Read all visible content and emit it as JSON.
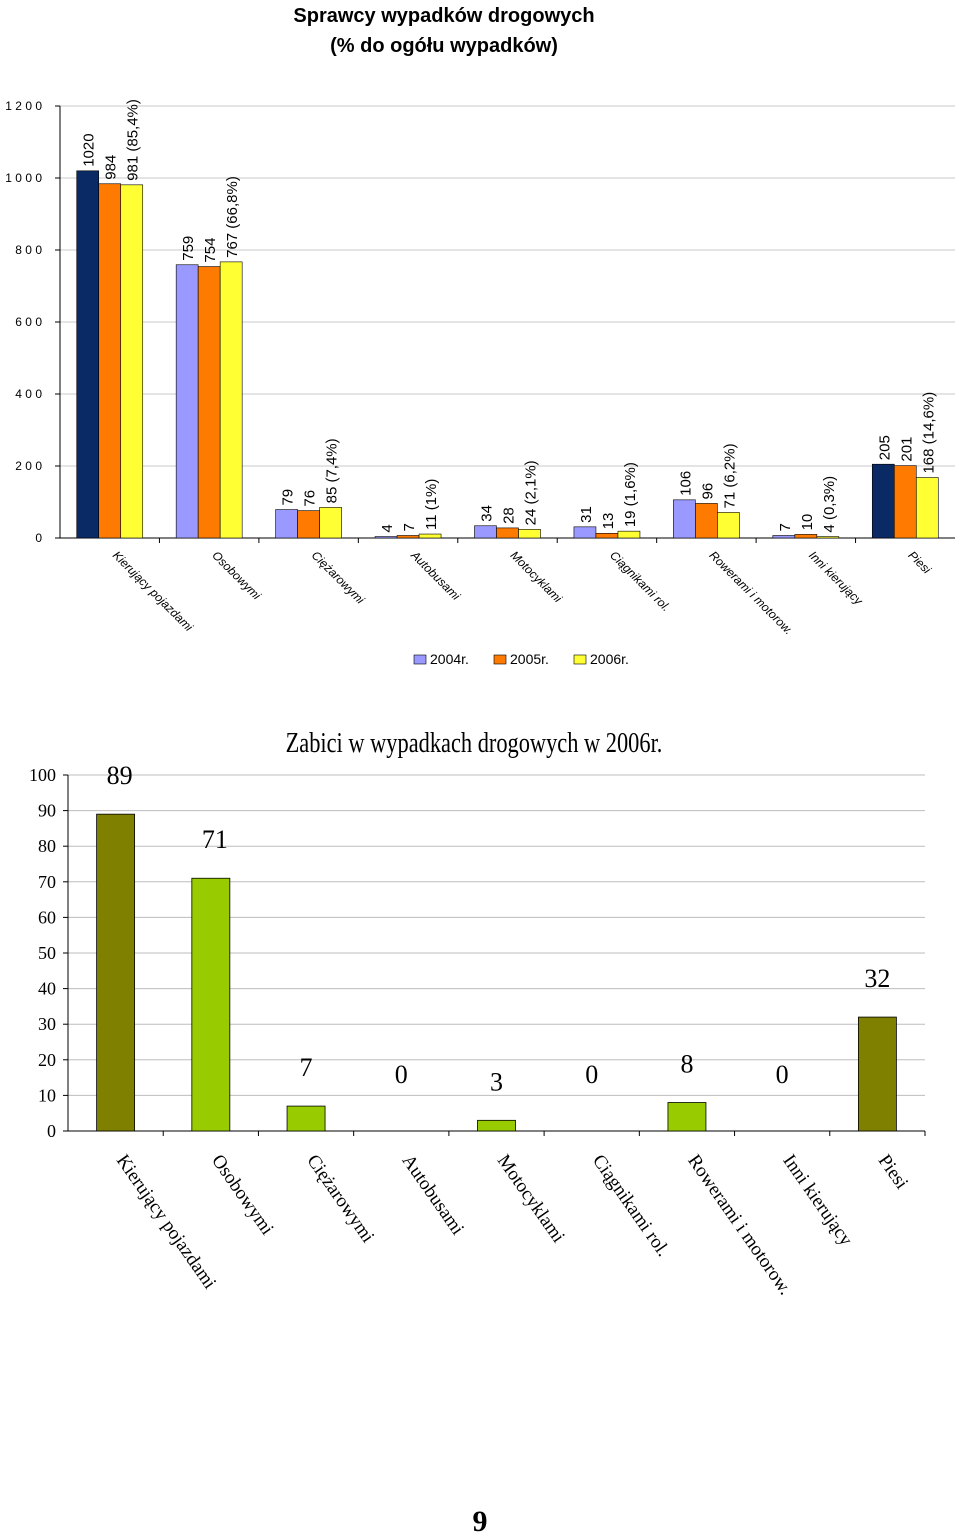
{
  "chart_data": [
    {
      "type": "bar",
      "title": "Sprawcy wypadków drogowych",
      "subtitle": "(% do ogółu wypadków)",
      "categories": [
        "Kierujący pojazdami",
        "Osobowymi",
        "Ciężarowymi",
        "Autobusami",
        "Motocyklami",
        "Ciągnikami rol.",
        "Rowerami i motorow.",
        "Inni kierujący",
        "Piesi"
      ],
      "series": [
        {
          "name": "2004r.",
          "values": [
            1020,
            759,
            79,
            4,
            34,
            31,
            106,
            7,
            205
          ]
        },
        {
          "name": "2005r.",
          "values": [
            984,
            754,
            76,
            7,
            28,
            13,
            96,
            10,
            201
          ]
        },
        {
          "name": "2006r.",
          "values": [
            981,
            767,
            85,
            11,
            24,
            19,
            71,
            4,
            168
          ]
        }
      ],
      "data_labels": [
        [
          "1020",
          "759",
          "79",
          "4",
          "34",
          "31",
          "106",
          "7",
          "205"
        ],
        [
          "984",
          "754",
          "76",
          "7",
          "28",
          "13",
          "96",
          "10",
          "201"
        ],
        [
          "981 (85,4%)",
          "767 (66,8%)",
          "85 (7,4%)",
          "11 (1%)",
          "24 (2,1%)",
          "19 (1,6%)",
          "71 (6,2%)",
          "4 (0,3%)",
          "168 (14,6%)"
        ]
      ],
      "colors": {
        "2004r.": "#9999ff",
        "2004r_highlight": "#0a2a66",
        "2005r.": "#ff7a00",
        "2006r.": "#ffff33"
      },
      "highlight_categories": [
        "Kierujący pojazdami",
        "Piesi"
      ],
      "ylim": [
        0,
        1200
      ],
      "yticks": [
        0,
        200,
        400,
        600,
        800,
        1000,
        1200
      ],
      "ytick_labels": [
        "0",
        "2 0 0",
        "4 0 0",
        "6 0 0",
        "8 0 0",
        "1 0 0 0",
        "1 2 0 0"
      ],
      "grid": true,
      "legend": "bottom"
    },
    {
      "type": "bar",
      "title": "Zabici w wypadkach drogowych w 2006r.",
      "categories": [
        "Kierujący pojazdami",
        "Osobowymi",
        "Ciężarowymi",
        "Autobusami",
        "Motocyklami",
        "Ciągnikami rol.",
        "Rowerami i motorow.",
        "Inni kierujący",
        "Piesi"
      ],
      "values": [
        89,
        71,
        7,
        0,
        3,
        0,
        8,
        0,
        32
      ],
      "colors": {
        "main": "#808000",
        "sub": "#99cc00"
      },
      "highlight_categories": [
        "Kierujący pojazdami",
        "Piesi"
      ],
      "ylim": [
        0,
        100
      ],
      "yticks": [
        0,
        10,
        20,
        30,
        40,
        50,
        60,
        70,
        80,
        90,
        100
      ],
      "grid": true
    }
  ],
  "page_number": "9"
}
